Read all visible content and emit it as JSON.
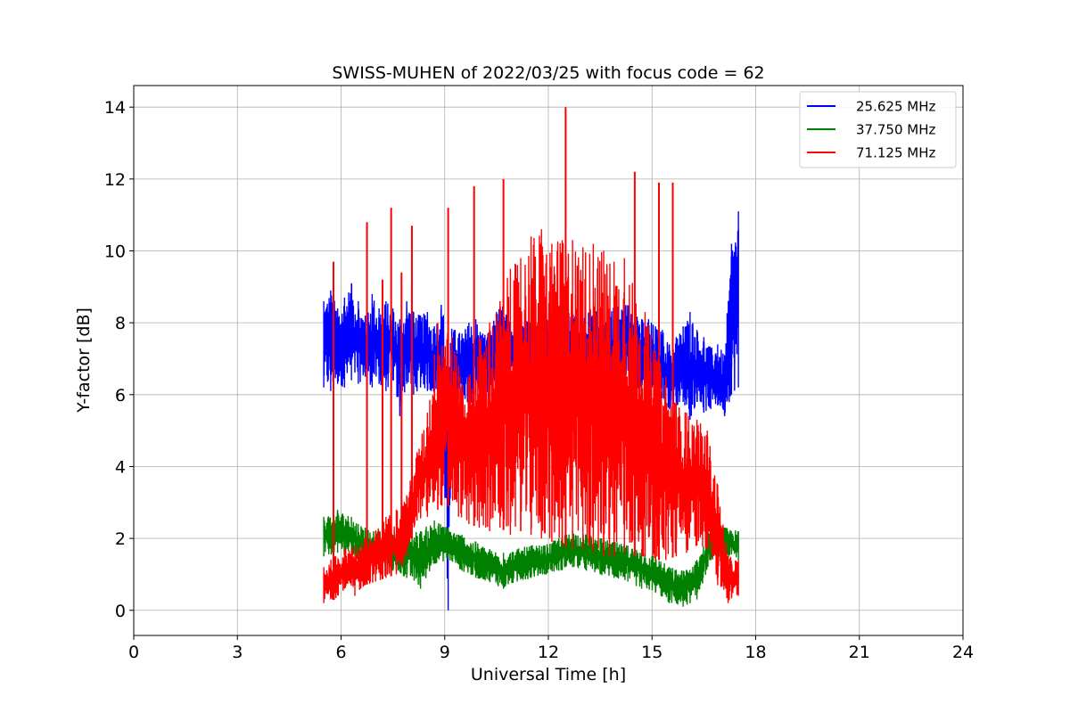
{
  "chart_data": {
    "type": "line",
    "title": "SWISS-MUHEN of 2022/03/25 with focus code = 62",
    "xlabel": "Universal Time [h]",
    "ylabel": "Y-factor [dB]",
    "xlim": [
      0,
      24
    ],
    "ylim": [
      -0.7,
      14.6
    ],
    "xticks": [
      0,
      3,
      6,
      9,
      12,
      15,
      18,
      21,
      24
    ],
    "yticks": [
      0,
      2,
      4,
      6,
      8,
      10,
      12,
      14
    ],
    "grid": true,
    "legend_position": "top-right",
    "series": [
      {
        "name": "25.625 MHz",
        "color": "#0000ff",
        "x": [
          5.5,
          5.7,
          5.9,
          6.1,
          6.3,
          6.5,
          6.7,
          6.9,
          7.1,
          7.3,
          7.5,
          7.7,
          7.9,
          8.1,
          8.3,
          8.5,
          8.7,
          8.9,
          9.1,
          9.3,
          9.5,
          9.7,
          9.9,
          10.1,
          10.3,
          10.5,
          10.7,
          10.9,
          11.1,
          14.5,
          14.7,
          14.9,
          15.1,
          15.3,
          15.5,
          15.7,
          15.9,
          16.1,
          16.3,
          16.5,
          16.7,
          16.9,
          17.1,
          17.3,
          17.5
        ],
        "low": [
          6.2,
          6.1,
          6.3,
          6.2,
          6.4,
          6.3,
          6.5,
          6.2,
          6.3,
          6.1,
          6.4,
          5.4,
          6.3,
          6.0,
          6.2,
          6.1,
          6.0,
          6.2,
          0.0,
          6.1,
          6.0,
          5.7,
          6.0,
          6.2,
          6.0,
          6.4,
          6.3,
          6.5,
          6.6,
          6.2,
          6.0,
          6.1,
          5.8,
          5.9,
          5.6,
          5.7,
          5.8,
          5.3,
          5.8,
          5.5,
          5.6,
          5.7,
          5.4,
          6.0,
          6.2
        ],
        "high": [
          8.6,
          8.9,
          8.4,
          8.7,
          9.1,
          8.6,
          8.2,
          8.8,
          8.4,
          8.6,
          8.4,
          8.1,
          8.6,
          8.3,
          8.2,
          8.3,
          7.9,
          8.5,
          8.0,
          7.8,
          7.7,
          8.0,
          8.1,
          7.7,
          7.8,
          8.3,
          8.5,
          8.0,
          8.0,
          8.6,
          8.1,
          8.1,
          7.9,
          7.8,
          7.4,
          7.6,
          7.9,
          8.3,
          7.8,
          7.6,
          7.3,
          7.4,
          7.1,
          10.2,
          11.1
        ]
      },
      {
        "name": "37.750 MHz",
        "color": "#008000",
        "x": [
          5.5,
          5.9,
          6.3,
          6.7,
          7.1,
          7.5,
          7.9,
          8.3,
          8.7,
          9.1,
          9.5,
          9.9,
          10.3,
          10.7,
          11.1,
          11.5,
          11.9,
          12.3,
          12.7,
          13.1,
          13.5,
          13.9,
          14.3,
          14.7,
          15.1,
          15.5,
          15.9,
          16.3,
          16.7,
          17.1,
          17.5
        ],
        "low": [
          1.5,
          1.6,
          1.5,
          1.2,
          1.3,
          1.1,
          0.9,
          0.6,
          1.3,
          1.4,
          1.1,
          0.9,
          0.8,
          0.6,
          0.8,
          0.9,
          1.0,
          1.1,
          1.2,
          1.1,
          1.0,
          0.9,
          0.8,
          0.6,
          0.5,
          0.2,
          0.1,
          0.3,
          1.4,
          1.5,
          1.4
        ],
        "high": [
          2.6,
          2.8,
          2.6,
          2.3,
          2.2,
          2.1,
          2.2,
          2.2,
          2.5,
          2.3,
          2.1,
          1.9,
          1.7,
          1.6,
          1.7,
          1.8,
          1.8,
          2.0,
          2.2,
          2.1,
          2.0,
          1.9,
          1.8,
          1.7,
          1.5,
          1.2,
          1.1,
          1.4,
          2.3,
          2.3,
          2.2
        ]
      },
      {
        "name": "71.125 MHz",
        "color": "#ff0000",
        "x": [
          5.5,
          5.8,
          6.1,
          6.4,
          6.7,
          7.0,
          7.3,
          7.6,
          7.9,
          8.2,
          8.5,
          8.8,
          9.1,
          9.4,
          9.7,
          10.0,
          10.3,
          10.6,
          10.9,
          11.2,
          11.5,
          11.8,
          12.1,
          12.4,
          12.7,
          13.0,
          13.3,
          13.6,
          13.9,
          14.2,
          14.5,
          14.8,
          15.1,
          15.4,
          15.7,
          16.0,
          16.3,
          16.6,
          16.9,
          17.2,
          17.5
        ],
        "low": [
          0.2,
          0.3,
          0.6,
          0.4,
          0.7,
          0.8,
          0.9,
          1.0,
          1.5,
          2.5,
          2.6,
          2.8,
          2.9,
          2.6,
          2.4,
          2.3,
          2.2,
          2.3,
          2.1,
          2.2,
          2.1,
          2.0,
          1.9,
          1.8,
          1.7,
          1.7,
          1.6,
          1.5,
          1.5,
          1.6,
          1.5,
          1.5,
          1.4,
          1.4,
          1.5,
          1.6,
          1.8,
          1.7,
          0.7,
          0.2,
          0.4
        ],
        "high": [
          1.2,
          1.5,
          1.7,
          1.8,
          2.0,
          2.2,
          2.6,
          2.8,
          3.2,
          4.4,
          5.5,
          8.0,
          8.2,
          6.8,
          6.5,
          7.6,
          8.0,
          8.6,
          9.5,
          9.8,
          10.4,
          10.6,
          10.2,
          10.3,
          10.3,
          10.1,
          10.2,
          10.0,
          9.7,
          9.8,
          9.0,
          8.3,
          7.2,
          6.5,
          5.8,
          5.5,
          5.3,
          5.0,
          3.5,
          1.5,
          1.4
        ]
      }
    ],
    "spikes": [
      {
        "series": "71.125 MHz",
        "x": 5.78,
        "y": 9.7
      },
      {
        "series": "71.125 MHz",
        "x": 6.75,
        "y": 10.8
      },
      {
        "series": "71.125 MHz",
        "x": 7.2,
        "y": 9.2
      },
      {
        "series": "71.125 MHz",
        "x": 7.45,
        "y": 11.2
      },
      {
        "series": "71.125 MHz",
        "x": 7.75,
        "y": 9.4
      },
      {
        "series": "71.125 MHz",
        "x": 8.05,
        "y": 10.7
      },
      {
        "series": "71.125 MHz",
        "x": 9.1,
        "y": 11.2
      },
      {
        "series": "71.125 MHz",
        "x": 9.85,
        "y": 11.8
      },
      {
        "series": "71.125 MHz",
        "x": 10.7,
        "y": 12.0
      },
      {
        "series": "71.125 MHz",
        "x": 12.5,
        "y": 14.0
      },
      {
        "series": "71.125 MHz",
        "x": 14.5,
        "y": 12.2
      },
      {
        "series": "71.125 MHz",
        "x": 15.2,
        "y": 11.9
      },
      {
        "series": "71.125 MHz",
        "x": 15.6,
        "y": 11.9
      }
    ]
  }
}
